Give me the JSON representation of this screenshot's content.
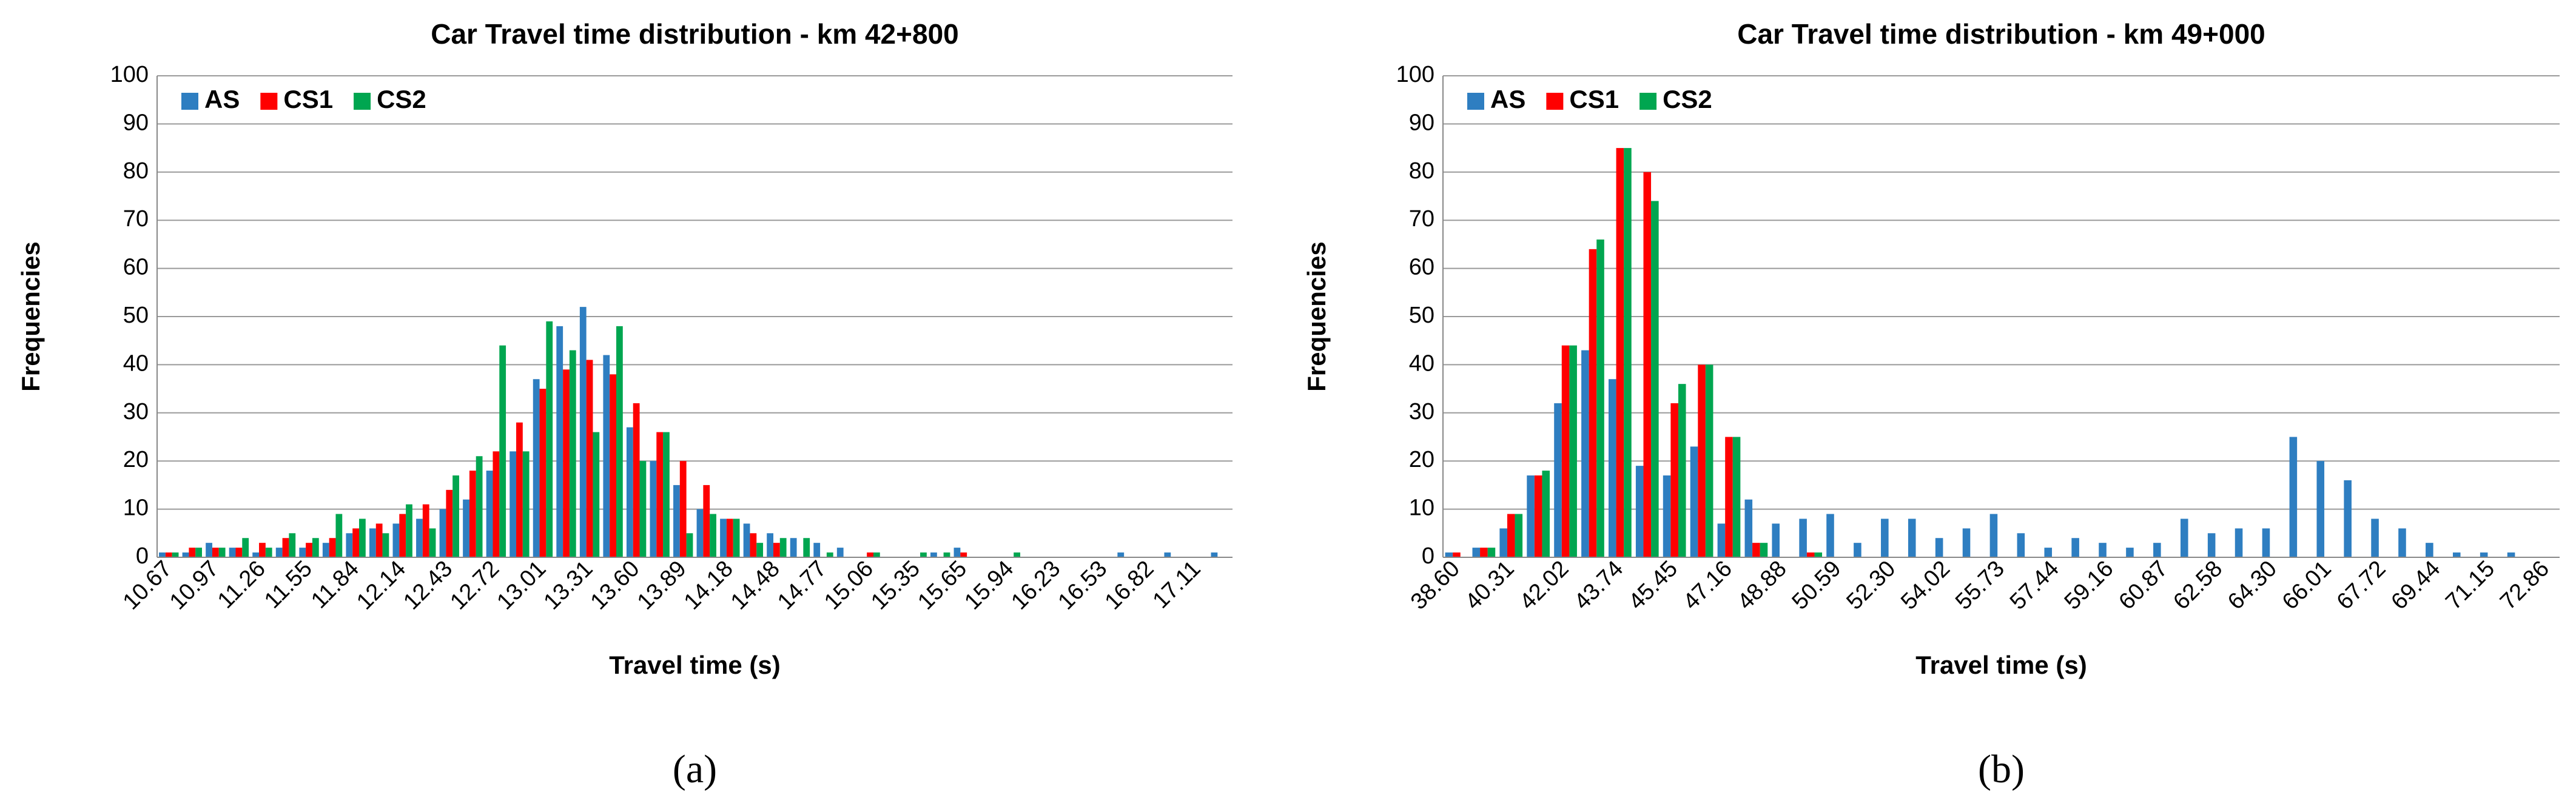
{
  "chart_data": [
    {
      "type": "bar",
      "title": "Car Travel time distribution - km 42+800",
      "x_label": "Travel time (s)",
      "y_label": "Frequencies",
      "caption": "(a)",
      "categories": [
        "10.67",
        null,
        "10.97",
        null,
        "11.26",
        null,
        "11.55",
        null,
        "11.84",
        null,
        "12.14",
        null,
        "12.43",
        null,
        "12.72",
        null,
        "13.01",
        null,
        "13.31",
        null,
        "13.60",
        null,
        "13.89",
        null,
        "14.18",
        null,
        "14.48",
        null,
        "14.77",
        null,
        "15.06",
        null,
        "15.35",
        null,
        "15.65",
        null,
        "15.94",
        null,
        "16.23",
        null,
        "16.53",
        null,
        "16.82",
        null,
        "17.11",
        null
      ],
      "series": [
        {
          "name": "AS",
          "color": "#2e7ec1",
          "values": [
            1,
            1,
            3,
            2,
            1,
            2,
            2,
            3,
            5,
            6,
            7,
            8,
            10,
            12,
            18,
            22,
            37,
            48,
            52,
            42,
            27,
            20,
            15,
            10,
            8,
            7,
            5,
            4,
            3,
            2,
            0,
            0,
            0,
            1,
            2,
            0,
            0,
            0,
            0,
            0,
            0,
            1,
            0,
            1,
            0,
            1
          ]
        },
        {
          "name": "CS1",
          "color": "#ff0000",
          "values": [
            1,
            2,
            2,
            2,
            3,
            4,
            3,
            4,
            6,
            7,
            9,
            11,
            14,
            18,
            22,
            28,
            35,
            39,
            41,
            38,
            32,
            26,
            20,
            15,
            8,
            5,
            3,
            0,
            0,
            0,
            1,
            0,
            0,
            0,
            1,
            0,
            0,
            0,
            0,
            0,
            0,
            0,
            0,
            0,
            0,
            0
          ]
        },
        {
          "name": "CS2",
          "color": "#00a650",
          "values": [
            1,
            2,
            2,
            4,
            2,
            5,
            4,
            9,
            8,
            5,
            11,
            6,
            17,
            21,
            44,
            22,
            49,
            43,
            26,
            48,
            20,
            26,
            5,
            9,
            8,
            3,
            4,
            4,
            1,
            0,
            1,
            0,
            1,
            1,
            0,
            0,
            1,
            0,
            0,
            0,
            0,
            0,
            0,
            0,
            0,
            0
          ]
        }
      ],
      "ylim": [
        0,
        100
      ],
      "yticks": [
        0,
        10,
        20,
        30,
        40,
        50,
        60,
        70,
        80,
        90,
        100
      ],
      "grid": true,
      "legend": "top-left"
    },
    {
      "type": "bar",
      "title": "Car Travel time distribution - km 49+000",
      "x_label": "Travel time (s)",
      "y_label": "Frequencies",
      "caption": "(b)",
      "categories": [
        "38.60",
        null,
        "40.31",
        null,
        "42.02",
        null,
        "43.74",
        null,
        "45.45",
        null,
        "47.16",
        null,
        "48.88",
        null,
        "50.59",
        null,
        "52.30",
        null,
        "54.02",
        null,
        "55.73",
        null,
        "57.44",
        null,
        "59.16",
        null,
        "60.87",
        null,
        "62.58",
        null,
        "64.30",
        null,
        "66.01",
        null,
        "67.72",
        null,
        "69.44",
        null,
        "71.15",
        null,
        "72.86"
      ],
      "series": [
        {
          "name": "AS",
          "color": "#2e7ec1",
          "values": [
            1,
            2,
            6,
            17,
            32,
            43,
            37,
            19,
            17,
            23,
            7,
            12,
            7,
            8,
            9,
            3,
            8,
            8,
            4,
            6,
            9,
            5,
            2,
            4,
            3,
            2,
            3,
            8,
            5,
            6,
            6,
            25,
            20,
            16,
            8,
            6,
            3,
            1,
            1,
            1,
            0
          ]
        },
        {
          "name": "CS1",
          "color": "#ff0000",
          "values": [
            1,
            2,
            9,
            17,
            44,
            64,
            85,
            80,
            32,
            40,
            25,
            3,
            0,
            1,
            0,
            0,
            0,
            0,
            0,
            0,
            0,
            0,
            0,
            0,
            0,
            0,
            0,
            0,
            0,
            0,
            0,
            0,
            0,
            0,
            0,
            0,
            0,
            0,
            0,
            0,
            0
          ]
        },
        {
          "name": "CS2",
          "color": "#00a650",
          "values": [
            0,
            2,
            9,
            18,
            44,
            66,
            85,
            74,
            36,
            40,
            25,
            3,
            0,
            1,
            0,
            0,
            0,
            0,
            0,
            0,
            0,
            0,
            0,
            0,
            0,
            0,
            0,
            0,
            0,
            0,
            0,
            0,
            0,
            0,
            0,
            0,
            0,
            0,
            0,
            0,
            0
          ]
        }
      ],
      "ylim": [
        0,
        100
      ],
      "yticks": [
        0,
        10,
        20,
        30,
        40,
        50,
        60,
        70,
        80,
        90,
        100
      ],
      "grid": true,
      "legend": "top-left"
    }
  ]
}
